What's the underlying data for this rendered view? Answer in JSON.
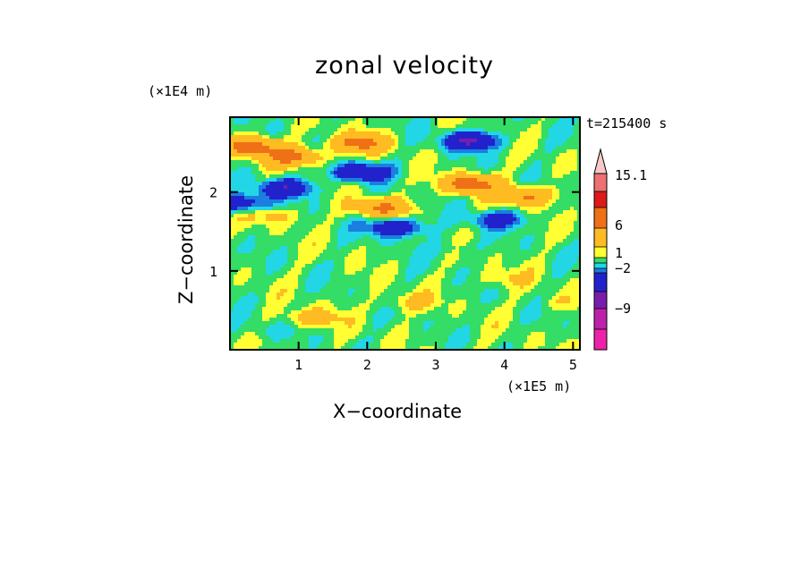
{
  "chart_data": {
    "type": "heatmap",
    "title": "zonal velocity",
    "xlabel": "X−coordinate",
    "ylabel": "Z−coordinate",
    "x_unit_label": "(×1E5 m)",
    "y_unit_label": "(×1E4 m)",
    "time_label": "t=215400 s",
    "xlim": [
      0,
      5.1
    ],
    "ylim": [
      0,
      2.95
    ],
    "x_ticks": [
      1,
      2,
      3,
      4,
      5
    ],
    "x_tick_labels": [
      "1",
      "2",
      "3",
      "4",
      "5"
    ],
    "y_ticks": [
      1,
      2
    ],
    "y_tick_labels": [
      "1",
      "2"
    ],
    "colorbar": {
      "levels": [
        "<-12",
        "-12..-9",
        "-9..-6",
        "-6..-2",
        "-2..-1",
        "-1..0",
        "0..1",
        "1..2",
        "2..6",
        "6..9",
        "9..12",
        "12..15.1",
        ">15.1"
      ],
      "colors": [
        "#ee22aa",
        "#bb22aa",
        "#7a1caa",
        "#2222cc",
        "#1a7fe0",
        "#22d6e6",
        "#33dd66",
        "#ffff33",
        "#ffbb22",
        "#f07018",
        "#dd1a1a",
        "#ee7070",
        "#f8c8c8"
      ],
      "labels": [
        "15.1",
        "6",
        "1",
        "−2",
        "−9"
      ],
      "label_values": [
        15.1,
        6,
        1,
        -2,
        -9
      ]
    },
    "features": [
      {
        "x": 0.3,
        "z": 2.58,
        "u": 8
      },
      {
        "x": 0.9,
        "z": 2.45,
        "u": 7
      },
      {
        "x": 1.9,
        "z": 2.62,
        "u": 7
      },
      {
        "x": 3.5,
        "z": 2.1,
        "u": 8
      },
      {
        "x": 4.3,
        "z": 1.95,
        "u": 6
      },
      {
        "x": 2.2,
        "z": 1.8,
        "u": 6
      },
      {
        "x": 0.8,
        "z": 2.05,
        "u": -6
      },
      {
        "x": 1.9,
        "z": 2.25,
        "u": -6
      },
      {
        "x": 3.5,
        "z": 2.65,
        "u": -7
      },
      {
        "x": 2.4,
        "z": 1.55,
        "u": -6
      },
      {
        "x": 3.9,
        "z": 1.65,
        "u": -4
      },
      {
        "x": 0.15,
        "z": 1.85,
        "u": -5
      },
      {
        "x": 0.6,
        "z": 1.7,
        "u": 2
      },
      {
        "x": 2.6,
        "z": 0.6,
        "u": 2
      },
      {
        "x": 4.0,
        "z": 0.9,
        "u": 1.5
      },
      {
        "x": 1.2,
        "z": 0.4,
        "u": 3
      },
      {
        "x": 3.3,
        "z": 1.3,
        "u": -1
      },
      {
        "x": 4.8,
        "z": 0.6,
        "u": 1
      },
      {
        "x": 0.5,
        "z": 0.25,
        "u": -1
      }
    ]
  }
}
